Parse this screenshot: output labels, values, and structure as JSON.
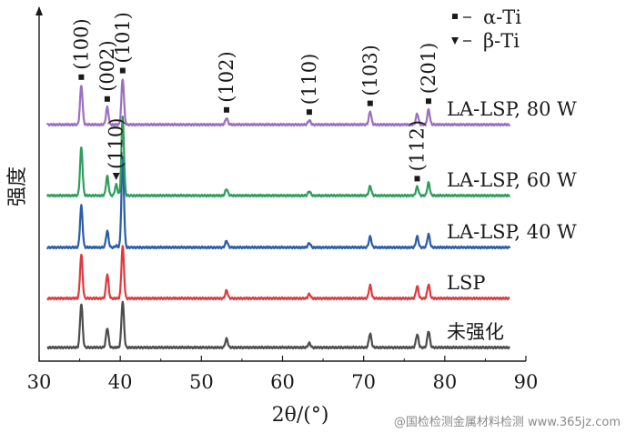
{
  "chart_data": {
    "type": "line",
    "xlabel": "2θ/(°)",
    "ylabel": "强度",
    "xlim": [
      30,
      90
    ],
    "x_ticks": [
      30,
      40,
      50,
      60,
      70,
      80,
      90
    ],
    "legend": [
      {
        "marker": "square",
        "label": "α-Ti"
      },
      {
        "marker": "triangle-down",
        "label": "β-Ti"
      }
    ],
    "peaks": [
      {
        "x": 35.2,
        "h": 1.0
      },
      {
        "x": 38.4,
        "h": 0.45
      },
      {
        "x": 40.3,
        "h": 2.1
      },
      {
        "x": 53.1,
        "h": 0.18
      },
      {
        "x": 63.3,
        "h": 0.12
      },
      {
        "x": 70.8,
        "h": 0.32
      },
      {
        "x": 76.6,
        "h": 0.28
      },
      {
        "x": 78.0,
        "h": 0.38
      }
    ],
    "beta_peak": {
      "x": 39.5,
      "h": 0.25
    },
    "series": [
      {
        "name": "未强化",
        "color": "#4d4d4d",
        "scale": [
          1.0,
          0.45,
          1.05,
          0.2,
          0.1,
          0.32,
          0.3,
          0.38
        ],
        "beta": 0
      },
      {
        "name": "LSP",
        "color": "#e0393e",
        "scale": [
          1.0,
          0.55,
          1.2,
          0.18,
          0.1,
          0.3,
          0.28,
          0.32
        ],
        "beta": 0
      },
      {
        "name": "LA-LSP, 40 W",
        "color": "#2a5caa",
        "scale": [
          0.95,
          0.38,
          2.05,
          0.15,
          0.1,
          0.25,
          0.25,
          0.3
        ],
        "beta": 0.15
      },
      {
        "name": "LA-LSP, 60 W",
        "color": "#2e9e5c",
        "scale": [
          1.1,
          0.45,
          1.8,
          0.15,
          0.1,
          0.22,
          0.2,
          0.3
        ],
        "beta": 1
      },
      {
        "name": "LA-LSP, 80 W",
        "color": "#9b6fc0",
        "scale": [
          0.9,
          0.4,
          1.05,
          0.15,
          0.1,
          0.3,
          0.25,
          0.35
        ],
        "beta": 0
      }
    ],
    "peak_annotations": [
      {
        "label": "(100)",
        "x": 35.2,
        "marker": "square",
        "series": "LA-LSP, 80 W"
      },
      {
        "label": "(002)",
        "x": 38.4,
        "marker": "square",
        "series": "LA-LSP, 80 W"
      },
      {
        "label": "(101)",
        "x": 40.3,
        "marker": "square",
        "series": "LA-LSP, 80 W"
      },
      {
        "label": "(102)",
        "x": 53.1,
        "marker": "square",
        "series": "LA-LSP, 80 W"
      },
      {
        "label": "(110)",
        "x": 63.3,
        "marker": "square",
        "series": "LA-LSP, 80 W"
      },
      {
        "label": "(103)",
        "x": 70.8,
        "marker": "square",
        "series": "LA-LSP, 80 W"
      },
      {
        "label": "(201)",
        "x": 78.0,
        "marker": "square",
        "series": "LA-LSP, 80 W"
      },
      {
        "label": "(110)",
        "x": 39.5,
        "marker": "triangle-down",
        "series": "LA-LSP, 60 W"
      },
      {
        "label": "(112)",
        "x": 76.6,
        "marker": "square",
        "series": "LA-LSP, 60 W"
      }
    ],
    "grid": false
  },
  "watermark": "@国检检测金属材料检测 www.365jz.com"
}
